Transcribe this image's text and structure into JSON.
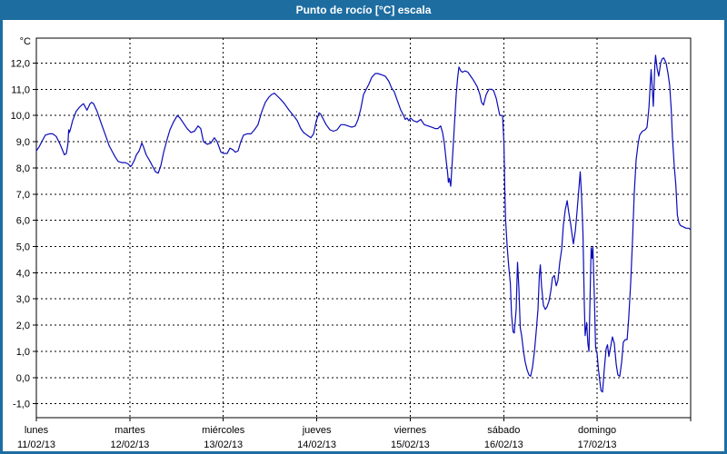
{
  "window": {
    "title": "Punto de rocío [°C] escala"
  },
  "colors": {
    "titlebar": "#1d6da1",
    "frame": "#1d6da1",
    "plot_bg": "#ffffff",
    "grid": "#000000",
    "line": "#0b0bb8"
  },
  "chart_data": {
    "type": "line",
    "title": "Punto de rocío [°C] escala",
    "unit_label": "°C",
    "xlabel": "",
    "ylabel": "°C",
    "grid": "on",
    "legend": "none",
    "xlim_hours": [
      0,
      168
    ],
    "ylim": [
      -1.53,
      12.95
    ],
    "yticks": [
      {
        "value": 12,
        "label": "12,0"
      },
      {
        "value": 11,
        "label": "11,0"
      },
      {
        "value": 10,
        "label": "10,0"
      },
      {
        "value": 9,
        "label": "9,0"
      },
      {
        "value": 8,
        "label": "8,0"
      },
      {
        "value": 7,
        "label": "7,0"
      },
      {
        "value": 6,
        "label": "6,0"
      },
      {
        "value": 5,
        "label": "5,0"
      },
      {
        "value": 4,
        "label": "4,0"
      },
      {
        "value": 3,
        "label": "3,0"
      },
      {
        "value": 2,
        "label": "2,0"
      },
      {
        "value": 1,
        "label": "1,0"
      },
      {
        "value": 0,
        "label": "0,0"
      },
      {
        "value": -1,
        "label": "-1,0"
      }
    ],
    "x_day_boundaries_hours": [
      0,
      24,
      48,
      72,
      96,
      120,
      144,
      168
    ],
    "x_categories": [
      {
        "day": "lunes",
        "date": "11/02/13",
        "t": 0
      },
      {
        "day": "martes",
        "date": "12/02/13",
        "t": 24
      },
      {
        "day": "miércoles",
        "date": "13/02/13",
        "t": 48
      },
      {
        "day": "jueves",
        "date": "14/02/13",
        "t": 72
      },
      {
        "day": "viernes",
        "date": "15/02/13",
        "t": 96
      },
      {
        "day": "sábado",
        "date": "16/02/13",
        "t": 120
      },
      {
        "day": "domingo",
        "date": "17/02/13",
        "t": 144
      }
    ],
    "series": [
      {
        "name": "Punto de rocío",
        "color": "#0b0bb8",
        "points": [
          [
            0,
            8.65
          ],
          [
            0.7,
            8.8
          ],
          [
            1.4,
            9.0
          ],
          [
            2.3,
            9.25
          ],
          [
            3.3,
            9.3
          ],
          [
            4.2,
            9.3
          ],
          [
            5.1,
            9.2
          ],
          [
            6.1,
            8.9
          ],
          [
            6.8,
            8.65
          ],
          [
            7.2,
            8.5
          ],
          [
            7.7,
            8.55
          ],
          [
            8.1,
            8.9
          ],
          [
            8.3,
            9.45
          ],
          [
            8.5,
            9.35
          ],
          [
            8.8,
            9.5
          ],
          [
            9.3,
            9.8
          ],
          [
            10.2,
            10.15
          ],
          [
            11,
            10.3
          ],
          [
            11.7,
            10.4
          ],
          [
            12.1,
            10.45
          ],
          [
            13,
            10.2
          ],
          [
            13.8,
            10.45
          ],
          [
            14.2,
            10.5
          ],
          [
            14.7,
            10.45
          ],
          [
            15.6,
            10.15
          ],
          [
            16.3,
            9.85
          ],
          [
            17,
            9.55
          ],
          [
            18,
            9.15
          ],
          [
            18.7,
            8.85
          ],
          [
            19.4,
            8.65
          ],
          [
            20.3,
            8.4
          ],
          [
            21,
            8.25
          ],
          [
            21.9,
            8.2
          ],
          [
            22.9,
            8.2
          ],
          [
            23.6,
            8.15
          ],
          [
            24.2,
            8.05
          ],
          [
            24.5,
            8.1
          ],
          [
            25.2,
            8.3
          ],
          [
            25.7,
            8.5
          ],
          [
            26.4,
            8.65
          ],
          [
            27.1,
            8.95
          ],
          [
            27.5,
            8.8
          ],
          [
            28.2,
            8.5
          ],
          [
            29.2,
            8.25
          ],
          [
            29.9,
            8.05
          ],
          [
            30.6,
            7.85
          ],
          [
            31.3,
            7.8
          ],
          [
            32,
            8.1
          ],
          [
            32.7,
            8.6
          ],
          [
            33.6,
            9.1
          ],
          [
            34.3,
            9.45
          ],
          [
            35.2,
            9.75
          ],
          [
            36.2,
            10.0
          ],
          [
            36.9,
            9.9
          ],
          [
            37.8,
            9.7
          ],
          [
            38.7,
            9.5
          ],
          [
            39.7,
            9.35
          ],
          [
            40.6,
            9.4
          ],
          [
            41.5,
            9.6
          ],
          [
            42.2,
            9.5
          ],
          [
            42.9,
            9.0
          ],
          [
            43.9,
            8.9
          ],
          [
            44.8,
            8.95
          ],
          [
            45.7,
            9.15
          ],
          [
            46.4,
            9.0
          ],
          [
            47.4,
            8.6
          ],
          [
            48.1,
            8.55
          ],
          [
            49,
            8.55
          ],
          [
            49.7,
            8.75
          ],
          [
            50.4,
            8.7
          ],
          [
            51.1,
            8.6
          ],
          [
            51.8,
            8.65
          ],
          [
            52.5,
            9.0
          ],
          [
            53.2,
            9.25
          ],
          [
            54.1,
            9.3
          ],
          [
            55.1,
            9.3
          ],
          [
            56,
            9.45
          ],
          [
            56.9,
            9.65
          ],
          [
            57.9,
            10.15
          ],
          [
            58.8,
            10.5
          ],
          [
            59.7,
            10.7
          ],
          [
            60.4,
            10.8
          ],
          [
            61.1,
            10.85
          ],
          [
            61.8,
            10.75
          ],
          [
            62.5,
            10.65
          ],
          [
            63.7,
            10.45
          ],
          [
            64.9,
            10.2
          ],
          [
            66,
            10.0
          ],
          [
            67,
            9.8
          ],
          [
            67.9,
            9.5
          ],
          [
            68.6,
            9.35
          ],
          [
            69.5,
            9.25
          ],
          [
            70.5,
            9.15
          ],
          [
            71.2,
            9.3
          ],
          [
            71.9,
            9.8
          ],
          [
            72.6,
            10.1
          ],
          [
            73,
            10.05
          ],
          [
            73.7,
            9.85
          ],
          [
            74.4,
            9.65
          ],
          [
            75.4,
            9.45
          ],
          [
            76.3,
            9.4
          ],
          [
            77.2,
            9.45
          ],
          [
            78.2,
            9.65
          ],
          [
            79.1,
            9.65
          ],
          [
            80,
            9.6
          ],
          [
            81,
            9.55
          ],
          [
            81.9,
            9.6
          ],
          [
            82.6,
            9.85
          ],
          [
            83.3,
            10.25
          ],
          [
            84,
            10.8
          ],
          [
            84.7,
            11.0
          ],
          [
            85.4,
            11.2
          ],
          [
            86.1,
            11.45
          ],
          [
            87,
            11.6
          ],
          [
            87.7,
            11.6
          ],
          [
            88.7,
            11.55
          ],
          [
            89.6,
            11.5
          ],
          [
            90.5,
            11.3
          ],
          [
            91.2,
            11.05
          ],
          [
            91.9,
            10.9
          ],
          [
            92.6,
            10.6
          ],
          [
            93.6,
            10.2
          ],
          [
            94.3,
            10.0
          ],
          [
            94.7,
            9.85
          ],
          [
            95.2,
            9.9
          ],
          [
            95.6,
            9.8
          ],
          [
            96.1,
            9.9
          ],
          [
            96.8,
            9.8
          ],
          [
            97.8,
            9.75
          ],
          [
            98.7,
            9.85
          ],
          [
            99.6,
            9.65
          ],
          [
            100.6,
            9.6
          ],
          [
            101.5,
            9.55
          ],
          [
            102.4,
            9.5
          ],
          [
            103.1,
            9.5
          ],
          [
            103.8,
            9.6
          ],
          [
            104.3,
            9.35
          ],
          [
            104.8,
            8.9
          ],
          [
            105.2,
            8.3
          ],
          [
            105.6,
            7.8
          ],
          [
            105.8,
            7.45
          ],
          [
            106.05,
            7.6
          ],
          [
            106.4,
            7.3
          ],
          [
            106.75,
            8.15
          ],
          [
            107.1,
            9.0
          ],
          [
            107.45,
            9.9
          ],
          [
            107.8,
            10.8
          ],
          [
            108.15,
            11.4
          ],
          [
            108.5,
            11.85
          ],
          [
            109,
            11.7
          ],
          [
            109.4,
            11.65
          ],
          [
            110.1,
            11.7
          ],
          [
            110.8,
            11.65
          ],
          [
            111.5,
            11.5
          ],
          [
            112.2,
            11.35
          ],
          [
            113.2,
            11.1
          ],
          [
            113.9,
            10.8
          ],
          [
            114.3,
            10.5
          ],
          [
            114.8,
            10.4
          ],
          [
            115.5,
            10.8
          ],
          [
            116.2,
            11.0
          ],
          [
            116.9,
            11.0
          ],
          [
            117.4,
            10.95
          ],
          [
            118.1,
            10.65
          ],
          [
            118.5,
            10.35
          ],
          [
            119,
            10.0
          ],
          [
            119.7,
            10.0
          ],
          [
            120.05,
            9.0
          ],
          [
            120.3,
            7.0
          ],
          [
            120.5,
            6.0
          ],
          [
            120.9,
            5.0
          ],
          [
            121.3,
            4.2
          ],
          [
            121.7,
            3.6
          ],
          [
            122,
            2.4
          ],
          [
            122.4,
            1.75
          ],
          [
            122.7,
            1.7
          ],
          [
            123.2,
            2.6
          ],
          [
            123.55,
            4.4
          ],
          [
            123.9,
            3.4
          ],
          [
            124.25,
            1.9
          ],
          [
            124.6,
            1.6
          ],
          [
            125.1,
            1.0
          ],
          [
            125.5,
            0.6
          ],
          [
            126,
            0.3
          ],
          [
            126.5,
            0.1
          ],
          [
            126.9,
            0.05
          ],
          [
            127.4,
            0.4
          ],
          [
            127.9,
            1.0
          ],
          [
            128.3,
            1.7
          ],
          [
            128.8,
            2.6
          ],
          [
            129.15,
            3.9
          ],
          [
            129.4,
            4.3
          ],
          [
            129.7,
            3.5
          ],
          [
            130.2,
            2.75
          ],
          [
            130.7,
            2.6
          ],
          [
            131.1,
            2.7
          ],
          [
            131.6,
            2.9
          ],
          [
            132.1,
            3.3
          ],
          [
            132.5,
            3.8
          ],
          [
            133,
            3.9
          ],
          [
            133.5,
            3.5
          ],
          [
            133.9,
            3.7
          ],
          [
            134.4,
            4.4
          ],
          [
            134.9,
            4.9
          ],
          [
            135.3,
            5.8
          ],
          [
            135.8,
            6.4
          ],
          [
            136.3,
            6.75
          ],
          [
            136.7,
            6.3
          ],
          [
            137.2,
            5.85
          ],
          [
            137.7,
            5.3
          ],
          [
            137.9,
            5.1
          ],
          [
            138.4,
            5.6
          ],
          [
            138.8,
            6.3
          ],
          [
            139.3,
            7.2
          ],
          [
            139.65,
            7.85
          ],
          [
            140,
            6.9
          ],
          [
            140.35,
            5.5
          ],
          [
            140.7,
            2.8
          ],
          [
            140.9,
            1.6
          ],
          [
            141.3,
            2.1
          ],
          [
            141.6,
            1.3
          ],
          [
            141.9,
            1.0
          ],
          [
            142.2,
            3.2
          ],
          [
            142.45,
            4.95
          ],
          [
            142.7,
            4.55
          ],
          [
            142.9,
            5.0
          ],
          [
            143.3,
            3.0
          ],
          [
            143.6,
            1.15
          ],
          [
            144,
            0.9
          ],
          [
            144.3,
            0.35
          ],
          [
            144.7,
            -0.15
          ],
          [
            145,
            -0.5
          ],
          [
            145.4,
            -0.55
          ],
          [
            145.8,
            0.3
          ],
          [
            146.3,
            1.1
          ],
          [
            146.65,
            1.25
          ],
          [
            147,
            0.8
          ],
          [
            147.5,
            1.2
          ],
          [
            147.9,
            1.55
          ],
          [
            148.4,
            1.3
          ],
          [
            148.9,
            0.5
          ],
          [
            149.3,
            0.1
          ],
          [
            149.8,
            0.05
          ],
          [
            150.3,
            0.6
          ],
          [
            150.7,
            1.35
          ],
          [
            151.2,
            1.45
          ],
          [
            151.7,
            1.45
          ],
          [
            152.1,
            2.3
          ],
          [
            152.6,
            3.6
          ],
          [
            153.1,
            5.3
          ],
          [
            153.5,
            7.0
          ],
          [
            154,
            8.3
          ],
          [
            154.5,
            8.9
          ],
          [
            154.9,
            9.25
          ],
          [
            155.6,
            9.4
          ],
          [
            156.3,
            9.45
          ],
          [
            156.8,
            9.55
          ],
          [
            157.3,
            10.3
          ],
          [
            157.6,
            11.1
          ],
          [
            157.85,
            11.75
          ],
          [
            158.2,
            10.9
          ],
          [
            158.4,
            10.35
          ],
          [
            158.8,
            11.9
          ],
          [
            159,
            12.3
          ],
          [
            159.4,
            11.8
          ],
          [
            159.8,
            11.5
          ],
          [
            160.3,
            12.0
          ],
          [
            160.65,
            12.15
          ],
          [
            161.1,
            12.2
          ],
          [
            161.7,
            12.0
          ],
          [
            162.2,
            11.6
          ],
          [
            162.6,
            11.15
          ],
          [
            163,
            10.25
          ],
          [
            163.3,
            9.2
          ],
          [
            163.8,
            8.05
          ],
          [
            164.2,
            7.35
          ],
          [
            164.6,
            6.2
          ],
          [
            165,
            5.9
          ],
          [
            165.4,
            5.8
          ],
          [
            166.1,
            5.75
          ],
          [
            166.8,
            5.7
          ],
          [
            167.5,
            5.7
          ],
          [
            167.9,
            5.65
          ]
        ]
      }
    ]
  }
}
